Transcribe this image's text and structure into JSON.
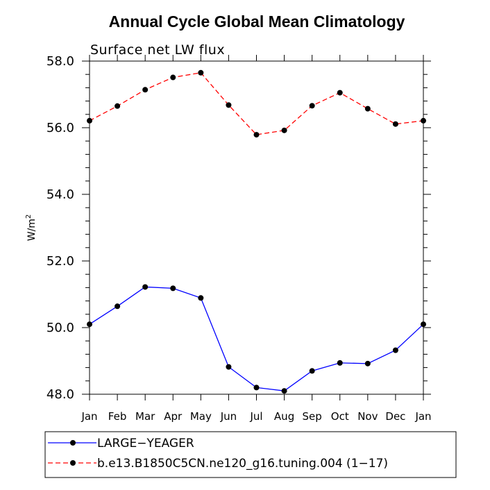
{
  "chart_data": {
    "type": "line",
    "title": "Annual Cycle Global Mean Climatology",
    "subtitle": "Surface net LW flux",
    "xlabel": "",
    "ylabel": "W/m",
    "ylabel_superscript": "2",
    "categories": [
      "Jan",
      "Feb",
      "Mar",
      "Apr",
      "May",
      "Jun",
      "Jul",
      "Aug",
      "Sep",
      "Oct",
      "Nov",
      "Dec",
      "Jan"
    ],
    "ylim": [
      48.0,
      58.0
    ],
    "yticks": [
      "48.0",
      "50.0",
      "52.0",
      "54.0",
      "56.0",
      "58.0"
    ],
    "grid": false,
    "legend_position": "bottom",
    "series": [
      {
        "name": "LARGE−YEAGER",
        "color": "#0000ff",
        "dash": "solid",
        "marker": "filled-circle",
        "values": [
          50.1,
          50.64,
          51.22,
          51.18,
          50.89,
          48.82,
          48.2,
          48.1,
          48.7,
          48.94,
          48.92,
          49.32,
          50.1
        ]
      },
      {
        "name": "b.e13.B1850C5CN.ne120_g16.tuning.004 (1−17)",
        "color": "#ff0000",
        "dash": "dashed",
        "marker": "filled-circle",
        "values": [
          56.21,
          56.65,
          57.14,
          57.51,
          57.65,
          56.68,
          55.79,
          55.92,
          56.66,
          57.05,
          56.57,
          56.11,
          56.21
        ]
      }
    ]
  }
}
